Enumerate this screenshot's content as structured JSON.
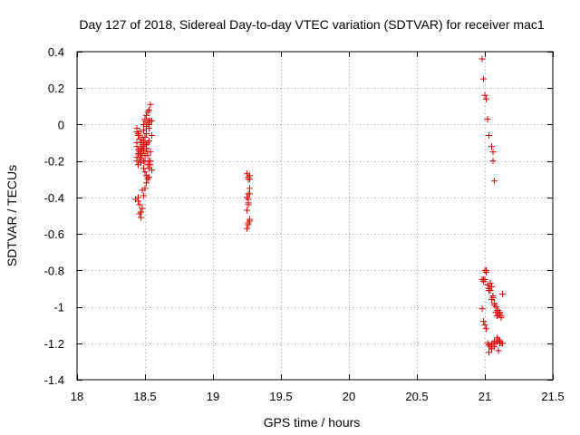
{
  "chart_data": {
    "type": "scatter",
    "title": "Day 127 of 2018, Sidereal Day-to-day VTEC variation (SDTVAR) for receiver mac1",
    "xlabel": "GPS time / hours",
    "ylabel": "SDTVAR / TECUs",
    "xlim": [
      18,
      21.5
    ],
    "ylim": [
      -1.4,
      0.4
    ],
    "xticks": [
      18,
      18.5,
      19,
      19.5,
      20,
      20.5,
      21,
      21.5
    ],
    "xtick_labels": [
      "18",
      "18.5",
      "19",
      "19.5",
      "20",
      "20.5",
      "21",
      "21.5"
    ],
    "yticks": [
      -1.4,
      -1.2,
      -1,
      -0.8,
      -0.6,
      -0.4,
      -0.2,
      0,
      0.2,
      0.4
    ],
    "ytick_labels": [
      "-1.4",
      "-1.2",
      "-1",
      "-0.8",
      "-0.6",
      "-0.4",
      "-0.2",
      "0",
      "0.2",
      "0.4"
    ],
    "grid": true,
    "marker": "+",
    "color": "#e00000",
    "series": [
      {
        "name": "SDTVAR",
        "x": [
          18.44,
          18.45,
          18.46,
          18.47,
          18.48,
          18.49,
          18.5,
          18.51,
          18.52,
          18.53,
          18.54,
          18.55,
          18.44,
          18.45,
          18.46,
          18.47,
          18.48,
          18.49,
          18.5,
          18.51,
          18.52,
          18.53,
          18.44,
          18.45,
          18.46,
          18.47,
          18.48,
          18.49,
          18.5,
          18.51,
          18.52,
          18.53,
          18.54,
          18.45,
          18.46,
          18.47,
          18.48,
          18.49,
          18.5,
          18.51,
          18.52,
          18.53,
          18.54,
          18.55,
          18.44,
          18.45,
          18.46,
          18.47,
          18.48,
          18.49,
          18.5,
          18.51,
          18.52,
          18.49,
          18.5,
          18.51,
          18.52,
          18.53,
          18.5,
          18.51,
          18.52,
          18.53,
          18.54,
          18.45,
          18.46,
          18.47,
          18.48,
          18.49,
          18.5,
          18.44,
          18.45,
          18.46,
          18.47,
          18.48,
          18.49,
          18.5,
          18.53,
          18.54,
          18.52,
          18.45,
          18.46,
          18.48,
          18.55,
          18.44,
          18.43,
          18.47,
          18.5,
          18.52,
          18.53,
          19.25,
          19.26,
          19.27,
          19.27,
          19.26,
          19.25,
          19.26,
          19.27,
          19.26,
          19.25,
          19.27,
          19.26,
          19.27,
          19.26,
          19.25,
          19.26,
          19.27,
          19.26,
          20.98,
          20.99,
          21.0,
          21.01,
          21.02,
          21.03,
          21.05,
          21.06,
          21.06,
          21.07,
          20.98,
          20.99,
          21.0,
          21.01,
          21.02,
          21.03,
          21.04,
          21.05,
          21.06,
          21.07,
          21.08,
          21.09,
          21.1,
          21.11,
          21.12,
          21.13,
          20.99,
          21.0,
          21.01,
          21.02,
          21.03,
          21.04,
          21.05,
          21.06,
          21.07,
          21.08,
          21.09,
          21.1,
          21.11,
          21.12,
          20.98,
          21.0,
          21.02,
          21.04,
          21.06,
          21.08,
          21.1,
          21.12,
          21.03,
          21.05,
          21.07,
          21.09,
          21.11,
          20.99,
          21.01,
          21.03,
          21.05,
          21.07,
          21.09,
          21.11,
          21.12,
          21.1,
          21.13,
          21.04
        ],
        "y": [
          -0.02,
          -0.05,
          -0.08,
          -0.1,
          -0.12,
          -0.14,
          -0.16,
          -0.13,
          -0.1,
          -0.09,
          -0.15,
          -0.06,
          -0.12,
          -0.16,
          -0.18,
          -0.2,
          -0.11,
          -0.09,
          -0.07,
          -0.05,
          0.01,
          0.02,
          -0.18,
          -0.22,
          -0.15,
          -0.13,
          -0.07,
          -0.03,
          0.02,
          0.05,
          0.07,
          0.0,
          0.02,
          -0.16,
          -0.19,
          -0.21,
          -0.14,
          -0.12,
          -0.1,
          -0.11,
          -0.17,
          -0.24,
          -0.22,
          -0.25,
          -0.1,
          -0.14,
          -0.04,
          -0.13,
          -0.17,
          0.0,
          0.03,
          -0.01,
          0.02,
          -0.24,
          -0.26,
          -0.28,
          -0.3,
          -0.29,
          -0.35,
          -0.32,
          -0.29,
          0.08,
          0.11,
          -0.4,
          -0.44,
          -0.48,
          -0.46,
          -0.39,
          -0.2,
          -0.04,
          -0.42,
          -0.49,
          -0.51,
          -0.36,
          -0.2,
          -0.17,
          -0.2,
          -0.2,
          -0.22,
          -0.06,
          -0.08,
          -0.13,
          0.02,
          -0.2,
          -0.41,
          -0.16,
          -0.09,
          -0.15,
          -0.02,
          -0.27,
          -0.29,
          -0.3,
          -0.35,
          -0.38,
          -0.4,
          -0.41,
          -0.38,
          -0.43,
          -0.47,
          -0.52,
          -0.54,
          -0.53,
          -0.55,
          -0.57,
          -0.44,
          -0.28,
          -0.3,
          0.36,
          0.25,
          0.16,
          0.14,
          0.03,
          -0.06,
          -0.12,
          -0.15,
          -0.2,
          -0.31,
          -0.85,
          -0.86,
          -0.8,
          -0.8,
          -0.88,
          -0.9,
          -0.91,
          -0.89,
          -0.95,
          -0.98,
          -1.03,
          -1.05,
          -1.02,
          -1.04,
          -1.05,
          -0.93,
          -1.08,
          -1.1,
          -1.12,
          -1.2,
          -1.21,
          -1.22,
          -1.21,
          -1.2,
          -1.19,
          -1.2,
          -1.19,
          -1.18,
          -1.19,
          -1.2,
          -1.01,
          -0.85,
          -0.88,
          -0.87,
          -0.94,
          -1.0,
          -1.04,
          -1.05,
          -1.25,
          -1.23,
          -1.22,
          -1.17,
          -1.2,
          -0.85,
          -0.81,
          -0.91,
          -0.96,
          -0.99,
          -1.02,
          -1.03,
          -1.06,
          -1.24,
          -1.2,
          -0.89
        ]
      }
    ]
  }
}
